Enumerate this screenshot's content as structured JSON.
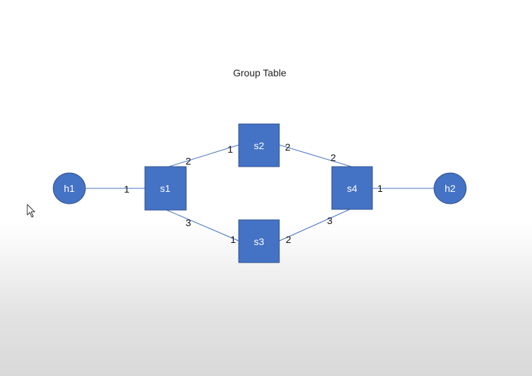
{
  "title": "Group Table",
  "colors": {
    "node_fill": "#4472c4",
    "node_stroke": "#2f528f",
    "link_stroke": "#4472c4"
  },
  "nodes": {
    "h1": {
      "label": "h1",
      "shape": "ellipse"
    },
    "s1": {
      "label": "s1",
      "shape": "square"
    },
    "s2": {
      "label": "s2",
      "shape": "square"
    },
    "s3": {
      "label": "s3",
      "shape": "square"
    },
    "s4": {
      "label": "s4",
      "shape": "square"
    },
    "h2": {
      "label": "h2",
      "shape": "ellipse"
    }
  },
  "links": [
    {
      "from": "h1",
      "to": "s1",
      "port_from": "",
      "port_to": "1"
    },
    {
      "from": "s1",
      "to": "s2",
      "port_from": "2",
      "port_to": "1"
    },
    {
      "from": "s1",
      "to": "s3",
      "port_from": "3",
      "port_to": "1"
    },
    {
      "from": "s2",
      "to": "s4",
      "port_from": "2",
      "port_to": "2"
    },
    {
      "from": "s3",
      "to": "s4",
      "port_from": "2",
      "port_to": "3"
    },
    {
      "from": "s4",
      "to": "h2",
      "port_from": "1",
      "port_to": ""
    }
  ],
  "cursor_icon": "mouse-pointer-icon"
}
